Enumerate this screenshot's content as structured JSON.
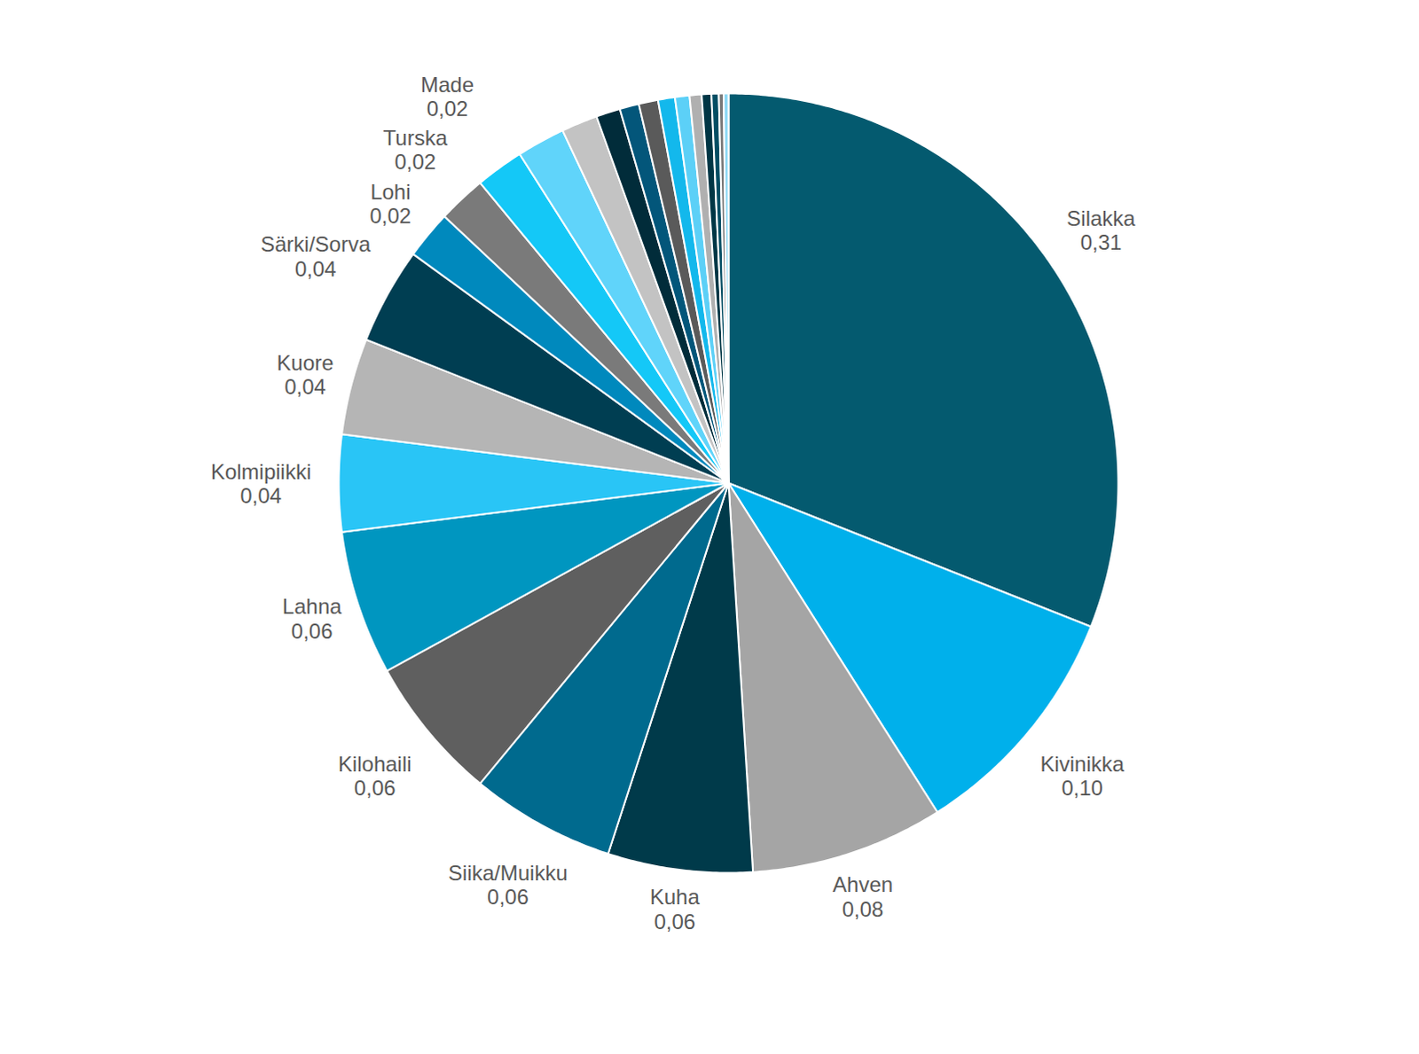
{
  "chart_data": {
    "type": "pie",
    "categories": [
      "Silakka",
      "Kivinikka",
      "Ahven",
      "Kuha",
      "Siika/Muikku",
      "Kilohaili",
      "Lahna",
      "Kolmipiikki",
      "Kuore",
      "Särki/Sorva",
      "Lohi",
      "Turska",
      "Made",
      null,
      null,
      null,
      null,
      null,
      null,
      null,
      null,
      null,
      null,
      null,
      null
    ],
    "values": [
      0.31,
      0.1,
      0.08,
      0.06,
      0.06,
      0.06,
      0.06,
      0.04,
      0.04,
      0.04,
      0.02,
      0.02,
      0.02,
      0.02,
      0.015,
      0.01,
      0.008,
      0.008,
      0.007,
      0.006,
      0.005,
      0.004,
      0.003,
      0.002,
      0.002
    ],
    "value_labels": [
      "0,31",
      "0,10",
      "0,08",
      "0,06",
      "0,06",
      "0,06",
      "0,06",
      "0,04",
      "0,04",
      "0,04",
      "0,02",
      "0,02",
      "0,02",
      null,
      null,
      null,
      null,
      null,
      null,
      null,
      null,
      null,
      null,
      null,
      null
    ],
    "colors": [
      "#045a6f",
      "#00b0eb",
      "#a5a5a5",
      "#003a4a",
      "#006a8e",
      "#5f5f5f",
      "#0096c0",
      "#29c5f6",
      "#b5b5b5",
      "#003e52",
      "#0089bd",
      "#7a7a7a",
      "#14c8f7",
      "#60d4fa",
      "#c3c3c3",
      "#012c3a",
      "#03567a",
      "#5a5a5a",
      "#13b8ec",
      "#5cd0f7",
      "#b0b0b0",
      "#013645",
      "#044d63",
      "#777777",
      "#8ad8f5"
    ],
    "data_labels": true
  }
}
